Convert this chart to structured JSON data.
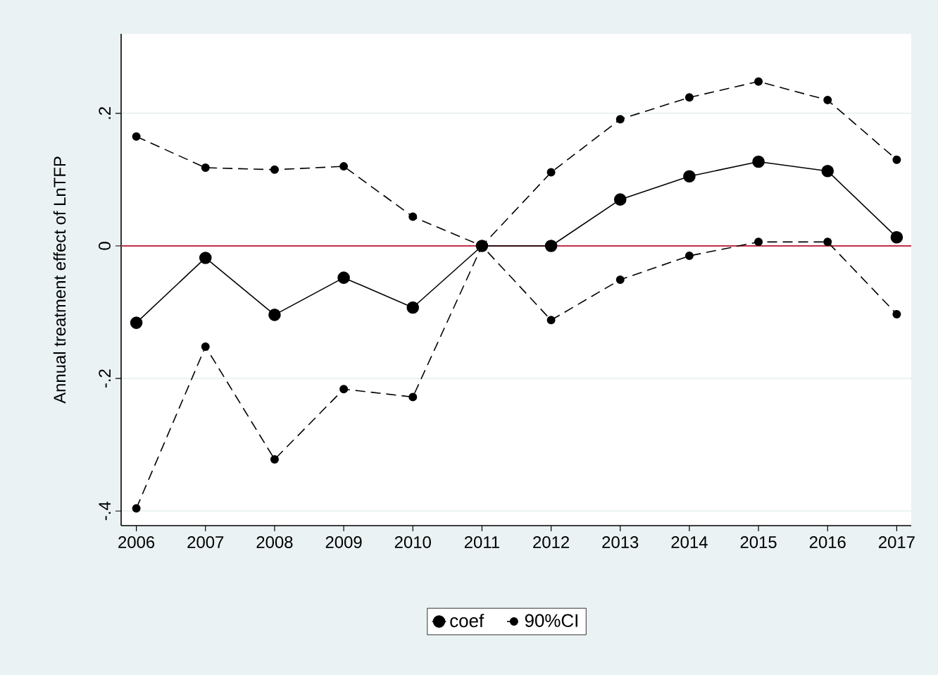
{
  "chart_data": {
    "type": "line",
    "ylabel": "Annual treatment effect of LnTFP",
    "categories": [
      "2006",
      "2007",
      "2008",
      "2009",
      "2010",
      "2011",
      "2012",
      "2013",
      "2014",
      "2015",
      "2016",
      "2017"
    ],
    "series": [
      {
        "name": "coef",
        "color": "#000000",
        "line_style": "solid",
        "values": [
          -0.116,
          -0.018,
          -0.104,
          -0.048,
          -0.093,
          0,
          0,
          0.07,
          0.105,
          0.127,
          0.113,
          0.013
        ]
      },
      {
        "name": "90%CI",
        "color": "#000000",
        "line_style": "dashed",
        "values": [
          0.165,
          0.118,
          0.115,
          0.12,
          0.044,
          0,
          0.111,
          0.191,
          0.224,
          0.248,
          0.22,
          0.13
        ]
      },
      {
        "color": "#000000",
        "line_style": "dashed",
        "values": [
          -0.396,
          -0.152,
          -0.322,
          -0.216,
          -0.228,
          0,
          -0.112,
          -0.051,
          -0.015,
          0.006,
          0.006,
          -0.103
        ]
      }
    ],
    "ylim": [
      -0.422,
      0.32
    ],
    "yticks": [
      {
        "value": -0.4,
        "label": "-.4"
      },
      {
        "value": -0.2,
        "label": "-.2"
      },
      {
        "value": 0,
        "label": "0"
      },
      {
        "value": 0.2,
        "label": ".2"
      }
    ],
    "ref_lines": [
      {
        "axis": "y",
        "value": 0,
        "color": "#c0304a"
      }
    ],
    "grid": "y",
    "legend": "bottom",
    "marker": "circle"
  }
}
